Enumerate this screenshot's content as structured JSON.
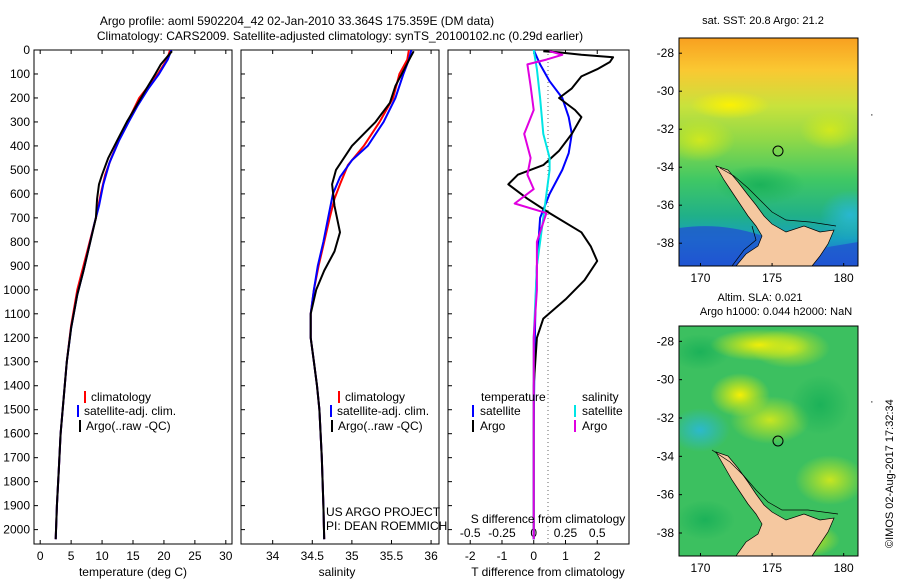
{
  "header": {
    "line1": "Argo profile: aoml 5902204_42 02-Jan-2010 33.364S 175.359E (DM data)",
    "line2": "Climatology: CARS2009. Satellite-adjusted climatology: synTS_20100102.nc (0.29d earlier)"
  },
  "colors": {
    "climatology": "#ff0000",
    "satellite": "#0000ff",
    "argo": "#000000",
    "sal_satellite": "#00e5e5",
    "sal_argo": "#e000e0",
    "land": "#f5c8a0"
  },
  "chart_data": [
    {
      "type": "line",
      "xlabel": "temperature (deg C)",
      "xlim": [
        -1,
        31
      ],
      "ylim": [
        2060,
        0
      ],
      "xticks": [
        0,
        5,
        10,
        15,
        20,
        25,
        30
      ],
      "yticks": [
        0,
        100,
        200,
        300,
        400,
        500,
        600,
        700,
        800,
        900,
        1000,
        1100,
        1200,
        1300,
        1400,
        1500,
        1600,
        1700,
        1800,
        1900,
        2000
      ],
      "legend": [
        "climatology",
        "satellite-adj. clim.",
        "Argo(..raw -QC)"
      ],
      "series": [
        {
          "name": "climatology",
          "color": "#ff0000",
          "points": [
            [
              21.0,
              0
            ],
            [
              20.5,
              40
            ],
            [
              19.0,
              100
            ],
            [
              17.5,
              150
            ],
            [
              16.0,
              200
            ],
            [
              14.5,
              280
            ],
            [
              13.0,
              360
            ],
            [
              11.5,
              450
            ],
            [
              10.5,
              520
            ],
            [
              9.8,
              600
            ],
            [
              9.0,
              700
            ],
            [
              8.0,
              800
            ],
            [
              7.0,
              900
            ],
            [
              6.0,
              1000
            ],
            [
              5.0,
              1150
            ],
            [
              4.3,
              1300
            ],
            [
              3.8,
              1450
            ],
            [
              3.3,
              1600
            ],
            [
              3.0,
              1750
            ],
            [
              2.7,
              1900
            ],
            [
              2.5,
              2040
            ]
          ]
        },
        {
          "name": "satellite-adj. clim.",
          "color": "#0000ff",
          "points": [
            [
              21.2,
              0
            ],
            [
              20.6,
              40
            ],
            [
              19.2,
              100
            ],
            [
              17.5,
              160
            ],
            [
              15.8,
              230
            ],
            [
              14.3,
              300
            ],
            [
              12.7,
              380
            ],
            [
              11.2,
              470
            ],
            [
              10.2,
              560
            ],
            [
              9.5,
              650
            ],
            [
              8.8,
              720
            ],
            [
              7.9,
              820
            ],
            [
              7.0,
              920
            ],
            [
              6.0,
              1020
            ],
            [
              5.0,
              1160
            ],
            [
              4.3,
              1300
            ],
            [
              3.8,
              1450
            ],
            [
              3.3,
              1600
            ],
            [
              3.0,
              1750
            ],
            [
              2.7,
              1900
            ],
            [
              2.5,
              2040
            ]
          ]
        },
        {
          "name": "Argo(..raw -QC)",
          "color": "#000000",
          "points": [
            [
              21.3,
              5
            ],
            [
              20.8,
              20
            ],
            [
              19.5,
              60
            ],
            [
              18.6,
              100
            ],
            [
              17.2,
              160
            ],
            [
              15.6,
              230
            ],
            [
              14.0,
              300
            ],
            [
              12.4,
              380
            ],
            [
              11.0,
              450
            ],
            [
              10.0,
              520
            ],
            [
              9.5,
              560
            ],
            [
              9.2,
              620
            ],
            [
              9.0,
              700
            ],
            [
              8.1,
              800
            ],
            [
              7.0,
              920
            ],
            [
              6.0,
              1020
            ],
            [
              5.0,
              1160
            ],
            [
              4.3,
              1300
            ],
            [
              3.8,
              1450
            ],
            [
              3.3,
              1600
            ],
            [
              3.0,
              1750
            ],
            [
              2.7,
              1900
            ],
            [
              2.5,
              2040
            ]
          ]
        }
      ]
    },
    {
      "type": "line",
      "xlabel": "salinity",
      "xlim": [
        33.6,
        36.1
      ],
      "ylim": [
        2060,
        0
      ],
      "xticks": [
        34,
        34.5,
        35,
        35.5,
        36
      ],
      "xticklabels": [
        "34",
        "34.5",
        "35",
        "35.5",
        "36"
      ],
      "legend": [
        "climatology",
        "satellite-adj. clim.",
        "Argo(..raw -QC)"
      ],
      "annotation": [
        "US ARGO PROJECT",
        "PI: DEAN ROEMMICH"
      ],
      "series": [
        {
          "name": "climatology",
          "color": "#ff0000",
          "points": [
            [
              35.72,
              0
            ],
            [
              35.7,
              40
            ],
            [
              35.6,
              100
            ],
            [
              35.52,
              200
            ],
            [
              35.35,
              300
            ],
            [
              35.15,
              400
            ],
            [
              34.95,
              480
            ],
            [
              34.85,
              560
            ],
            [
              34.78,
              620
            ],
            [
              34.72,
              700
            ],
            [
              34.65,
              800
            ],
            [
              34.58,
              900
            ],
            [
              34.52,
              1000
            ],
            [
              34.48,
              1100
            ],
            [
              34.48,
              1200
            ],
            [
              34.52,
              1300
            ],
            [
              34.56,
              1400
            ],
            [
              34.59,
              1500
            ],
            [
              34.62,
              1700
            ],
            [
              34.64,
              1900
            ],
            [
              34.65,
              2040
            ]
          ]
        },
        {
          "name": "satellite-adj. clim.",
          "color": "#0000ff",
          "points": [
            [
              35.75,
              0
            ],
            [
              35.72,
              40
            ],
            [
              35.65,
              100
            ],
            [
              35.55,
              200
            ],
            [
              35.4,
              300
            ],
            [
              35.2,
              400
            ],
            [
              35.0,
              460
            ],
            [
              34.85,
              530
            ],
            [
              34.76,
              600
            ],
            [
              34.7,
              700
            ],
            [
              34.64,
              800
            ],
            [
              34.57,
              900
            ],
            [
              34.52,
              1000
            ],
            [
              34.48,
              1100
            ],
            [
              34.48,
              1200
            ],
            [
              34.52,
              1300
            ],
            [
              34.56,
              1400
            ],
            [
              34.59,
              1500
            ],
            [
              34.62,
              1700
            ],
            [
              34.64,
              1900
            ],
            [
              34.65,
              2040
            ]
          ]
        },
        {
          "name": "Argo(..raw -QC)",
          "color": "#000000",
          "points": [
            [
              35.78,
              5
            ],
            [
              35.74,
              30
            ],
            [
              35.66,
              80
            ],
            [
              35.55,
              150
            ],
            [
              35.48,
              220
            ],
            [
              35.3,
              300
            ],
            [
              35.0,
              400
            ],
            [
              34.8,
              500
            ],
            [
              34.75,
              560
            ],
            [
              34.78,
              650
            ],
            [
              34.85,
              760
            ],
            [
              34.78,
              840
            ],
            [
              34.65,
              920
            ],
            [
              34.55,
              1000
            ],
            [
              34.48,
              1100
            ],
            [
              34.48,
              1200
            ],
            [
              34.52,
              1300
            ],
            [
              34.56,
              1400
            ],
            [
              34.59,
              1500
            ],
            [
              34.62,
              1700
            ],
            [
              34.64,
              1900
            ],
            [
              34.65,
              2040
            ]
          ]
        }
      ]
    },
    {
      "type": "line",
      "xlabel": "T difference from climatology",
      "xlabel_top": "S difference from climatology",
      "xlim": [
        -2.7,
        3.0
      ],
      "ylim": [
        2060,
        0
      ],
      "xticks": [
        -2,
        -1,
        0,
        1,
        2
      ],
      "xticklabels": [
        "-2",
        "-1",
        "0",
        "1",
        "2"
      ],
      "sticks": [
        -2.0,
        -1.0,
        0,
        1.0,
        2.0
      ],
      "sticklabels": [
        "-0.5",
        "-0.25",
        "0",
        "0.25",
        "0.5"
      ],
      "legend_temperature": {
        "title": "temperature",
        "items": [
          "satellite",
          "Argo"
        ]
      },
      "legend_salinity": {
        "title": "salinity",
        "items": [
          "satellite",
          "Argo"
        ]
      },
      "series": [
        {
          "name": "satellite",
          "color": "#0000ff",
          "points": [
            [
              0.0,
              0
            ],
            [
              0.2,
              60
            ],
            [
              0.5,
              130
            ],
            [
              0.9,
              200
            ],
            [
              1.1,
              280
            ],
            [
              1.2,
              350
            ],
            [
              1.1,
              430
            ],
            [
              0.9,
              500
            ],
            [
              0.5,
              600
            ],
            [
              0.2,
              700
            ],
            [
              0.1,
              900
            ],
            [
              0.05,
              1100
            ],
            [
              0.02,
              1300
            ],
            [
              0.0,
              1600
            ],
            [
              0.0,
              2040
            ]
          ]
        },
        {
          "name": "Argo",
          "color": "#000000",
          "points": [
            [
              0.3,
              5
            ],
            [
              0.8,
              10
            ],
            [
              1.5,
              20
            ],
            [
              2.5,
              30
            ],
            [
              2.4,
              50
            ],
            [
              2.0,
              80
            ],
            [
              1.5,
              110
            ],
            [
              1.2,
              160
            ],
            [
              0.8,
              200
            ],
            [
              1.3,
              250
            ],
            [
              1.5,
              280
            ],
            [
              1.2,
              350
            ],
            [
              0.8,
              420
            ],
            [
              0.3,
              480
            ],
            [
              -0.5,
              520
            ],
            [
              -0.8,
              560
            ],
            [
              -0.2,
              620
            ],
            [
              0.5,
              680
            ],
            [
              1.5,
              760
            ],
            [
              1.8,
              820
            ],
            [
              2.0,
              880
            ],
            [
              1.6,
              960
            ],
            [
              1.0,
              1040
            ],
            [
              0.3,
              1120
            ],
            [
              0.1,
              1200
            ],
            [
              0.0,
              1400
            ],
            [
              0.0,
              1700
            ],
            [
              0.0,
              2040
            ]
          ]
        },
        {
          "name": "satellite",
          "color": "#00e5e5",
          "points": [
            [
              0.0,
              0
            ],
            [
              0.1,
              80
            ],
            [
              0.2,
              200
            ],
            [
              0.3,
              350
            ],
            [
              0.5,
              450
            ],
            [
              0.5,
              500
            ],
            [
              0.3,
              700
            ],
            [
              0.1,
              900
            ],
            [
              0.0,
              1200
            ],
            [
              0.0,
              2040
            ]
          ]
        },
        {
          "name": "Argo",
          "color": "#e000e0",
          "points": [
            [
              0.5,
              5
            ],
            [
              0.9,
              20
            ],
            [
              0.4,
              40
            ],
            [
              -0.2,
              60
            ],
            [
              -0.1,
              150
            ],
            [
              0.0,
              250
            ],
            [
              -0.3,
              350
            ],
            [
              -0.1,
              450
            ],
            [
              -0.2,
              520
            ],
            [
              0.0,
              580
            ],
            [
              -0.6,
              640
            ],
            [
              0.4,
              680
            ],
            [
              0.1,
              800
            ],
            [
              0.1,
              1000
            ],
            [
              0.0,
              1200
            ],
            [
              0.0,
              2040
            ]
          ]
        }
      ]
    },
    {
      "type": "heatmap",
      "title": "sat. SST: 20.8 Argo: 21.2",
      "xlim": [
        168.5,
        181
      ],
      "ylim": [
        -39.2,
        -27.2
      ],
      "xticks": [
        170,
        175,
        180
      ],
      "yticks": [
        -28,
        -30,
        -32,
        -34,
        -36,
        -38
      ],
      "argo_position": [
        175.36,
        -33.36
      ]
    },
    {
      "type": "heatmap",
      "title": "Altim. SLA: 0.021",
      "subtitle": "Argo h1000: 0.044 h2000: NaN",
      "xlim": [
        168.5,
        181
      ],
      "ylim": [
        -39.2,
        -27.2
      ],
      "xticks": [
        170,
        175,
        180
      ],
      "yticks": [
        -28,
        -30,
        -32,
        -34,
        -36,
        -38
      ],
      "argo_position": [
        175.36,
        -33.36
      ]
    }
  ],
  "footer": {
    "imos": "©IMOS 02-Aug-2017 17:32:34"
  }
}
